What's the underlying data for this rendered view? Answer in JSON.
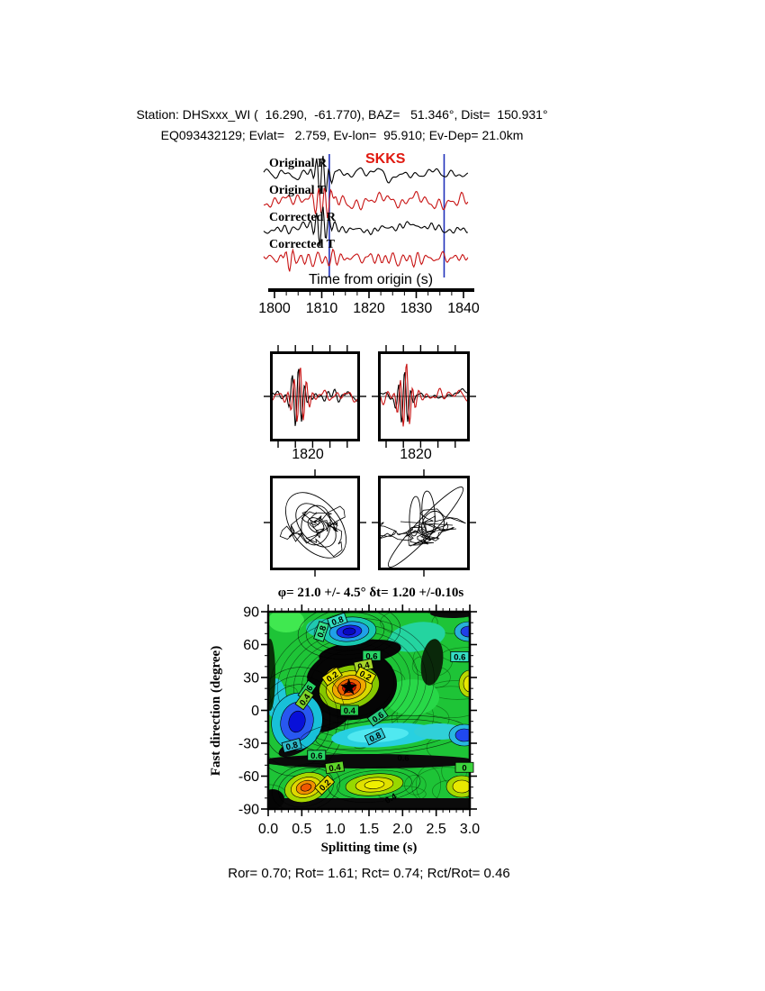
{
  "header": {
    "line1": "Station: DHSxxx_WI (  16.290,  -61.770), BAZ=   51.346°, Dist=  150.931°",
    "line2": "EQ093432129; Evlat=   2.759, Ev-lon=  95.910; Ev-Dep= 21.0km"
  },
  "waveform": {
    "phase_label": "SKKS",
    "xlabel": "Time from origin (s)",
    "xticks": [
      1800,
      1810,
      1820,
      1830,
      1840
    ],
    "window_s": [
      1811.6,
      1835.9
    ],
    "traces": [
      {
        "label": "Original R",
        "color": "#000000"
      },
      {
        "label": "Original T",
        "color": "#c81414"
      },
      {
        "label": "Corrected R",
        "color": "#000000"
      },
      {
        "label": "Corrected T",
        "color": "#c81414"
      }
    ],
    "window_line_color": "#2233bb"
  },
  "zoom_panels": {
    "left_label": "1820",
    "right_label": "1820"
  },
  "contour": {
    "title": "φ= 21.0 +/- 4.5° δt= 1.20 +/-0.10s",
    "xlabel": "Splitting time (s)",
    "ylabel": "Fast direction (degree)",
    "xticks": [
      "0.0",
      "0.5",
      "1.0",
      "1.5",
      "2.0",
      "2.5",
      "3.0"
    ],
    "yticks": [
      "90",
      "60",
      "30",
      "0",
      "-30",
      "-60",
      "-90"
    ],
    "xlim": [
      0,
      3
    ],
    "ylim": [
      -90,
      90
    ],
    "best": {
      "phi_deg": 21.0,
      "phi_err_deg": 4.5,
      "dt_s": 1.2,
      "dt_err_s": 0.1
    },
    "labels": [
      {
        "text": "0.8",
        "dt": 1.03,
        "phi": 82,
        "rot": -20,
        "bg": "#35dfc3"
      },
      {
        "text": "0.8",
        "dt": 0.79,
        "phi": 72,
        "rot": -72,
        "bg": "#35df8a"
      },
      {
        "text": "0.6",
        "dt": 1.54,
        "phi": 50,
        "rot": 0,
        "bg": "#28d465"
      },
      {
        "text": "0.4",
        "dt": 1.42,
        "phi": 41,
        "rot": -12,
        "bg": "#a6d428"
      },
      {
        "text": "0.2",
        "dt": 0.95,
        "phi": 31,
        "rot": -35,
        "bg": "#e8e200"
      },
      {
        "text": "0.2",
        "dt": 1.45,
        "phi": 32,
        "rot": 28,
        "bg": "#e8e200"
      },
      {
        "text": "0.6",
        "dt": 2.85,
        "phi": 49,
        "rot": 0,
        "bg": "#35dfc3"
      },
      {
        "text": "0.6",
        "dt": 0.58,
        "phi": 18,
        "rot": -55,
        "bg": "#28d465"
      },
      {
        "text": "0.4",
        "dt": 0.54,
        "phi": 10,
        "rot": -55,
        "bg": "#7ed428"
      },
      {
        "text": "0.4",
        "dt": 1.21,
        "phi": 0,
        "rot": 0,
        "bg": "#28c94f"
      },
      {
        "text": "0.6",
        "dt": 1.63,
        "phi": -6,
        "rot": -35,
        "bg": "#28c97d"
      },
      {
        "text": "0.8",
        "dt": 1.59,
        "phi": -24,
        "rot": -25,
        "bg": "#2fc9d4"
      },
      {
        "text": "0.8",
        "dt": 0.35,
        "phi": -32,
        "rot": -15,
        "bg": "#2fb9c9"
      },
      {
        "text": "0.6",
        "dt": 0.72,
        "phi": -41,
        "rot": 0,
        "bg": "#28d465"
      },
      {
        "text": "0.6",
        "dt": 2.01,
        "phi": -43,
        "rot": 0,
        "bg": null
      },
      {
        "text": "0.4",
        "dt": 0.99,
        "phi": -52,
        "rot": -8,
        "bg": "#5ed428"
      },
      {
        "text": "0.2",
        "dt": 0.84,
        "phi": -68,
        "rot": -45,
        "bg": "#e0d800"
      },
      {
        "text": "0.4",
        "dt": 1.82,
        "phi": -80,
        "rot": -30,
        "bg": null
      },
      {
        "text": "0",
        "dt": 2.92,
        "phi": -52,
        "rot": 0,
        "bg": "#3cd43c"
      }
    ]
  },
  "footer": {
    "text": "Ror= 0.70; Rot= 1.61; Rct= 0.74; Rct/Rot= 0.46"
  },
  "chart_data": [
    {
      "type": "line",
      "title": "SKKS waveform traces",
      "series": [
        {
          "name": "Original R"
        },
        {
          "name": "Original T"
        },
        {
          "name": "Corrected R"
        },
        {
          "name": "Corrected T"
        }
      ],
      "xlabel": "Time from origin (s)",
      "xticks": [
        1800,
        1810,
        1820,
        1830,
        1840
      ],
      "xlim": [
        1798.7,
        1842.4
      ],
      "phase_marker": "SKKS",
      "analysis_window_s": [
        1811.6,
        1835.9
      ]
    },
    {
      "type": "line",
      "title": "Zoomed R/T overlay (original)",
      "xticks": [
        1820
      ]
    },
    {
      "type": "line",
      "title": "Zoomed R/T overlay (corrected)",
      "xticks": [
        1820
      ]
    },
    {
      "type": "scatter",
      "title": "Particle motion (original, elliptical)"
    },
    {
      "type": "scatter",
      "title": "Particle motion (corrected, linearized)"
    },
    {
      "type": "heatmap",
      "title": "φ= 21.0 +/- 4.5° δt= 1.20 +/-0.10s",
      "xlabel": "Splitting time (s)",
      "ylabel": "Fast direction (degree)",
      "xlim": [
        0,
        3
      ],
      "ylim": [
        -90,
        90
      ],
      "xticks": [
        0,
        0.5,
        1,
        1.5,
        2,
        2.5,
        3
      ],
      "yticks": [
        90,
        60,
        30,
        0,
        -30,
        -60,
        -90
      ],
      "contour_levels": [
        0,
        0.2,
        0.4,
        0.6,
        0.8
      ],
      "best_fit": {
        "fast_direction_deg": 21.0,
        "fast_direction_err_deg": 4.5,
        "delay_time_s": 1.2,
        "delay_time_err_s": 0.1
      },
      "minimum_marker": "star"
    },
    {
      "type": "table",
      "title": "Quality ratios",
      "values": {
        "Ror": 0.7,
        "Rot": 1.61,
        "Rct": 0.74,
        "Rct/Rot": 0.46
      }
    }
  ]
}
